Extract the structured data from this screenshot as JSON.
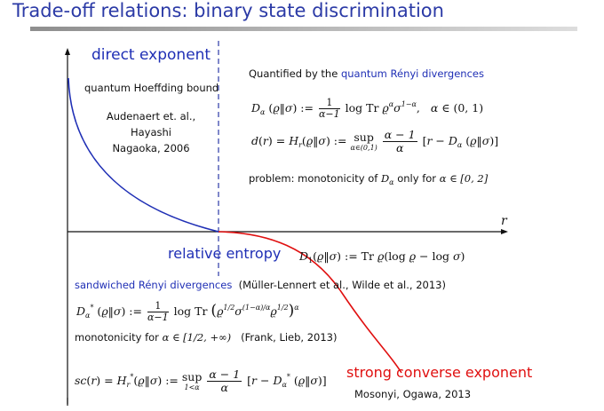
{
  "slide": {
    "title": "Trade-off relations: binary state discrimination"
  },
  "labels": {
    "direct_exponent": "direct exponent",
    "hoeffding": "quantum Hoeffding bound",
    "refs1": "Audenaert et. al.,",
    "refs2": "Hayashi",
    "refs3": "Nagaoka, 2006",
    "x_axis": "r",
    "relative_entropy": "relative entropy",
    "sandwiched": "sandwiched Rényi divergences",
    "sandwiched_refs": "(Müller-Lennert et al., Wilde et al., 2013)",
    "monotonicity_prefix": "monotonicity for ",
    "monotonicity_range": "α ∈ [1/2, +∞)",
    "monotonicity_refs": "(Frank, Lieb, 2013)",
    "strong_converse": "strong converse exponent",
    "strong_refs": "Mosonyi, Ogawa, 2013"
  },
  "right_panel": {
    "quantified_prefix": "Quantified by the ",
    "quantified_link": "quantum Rényi divergences",
    "problem_prefix": "problem:  monotonicity of ",
    "problem_suffix": " only for ",
    "problem_range": "α ∈ [0, 2]"
  },
  "colors": {
    "title": "#2b3aa6",
    "blue_curve": "#1f2fb5",
    "red_curve": "#e01010",
    "dashed_line": "#2b3aa6"
  }
}
